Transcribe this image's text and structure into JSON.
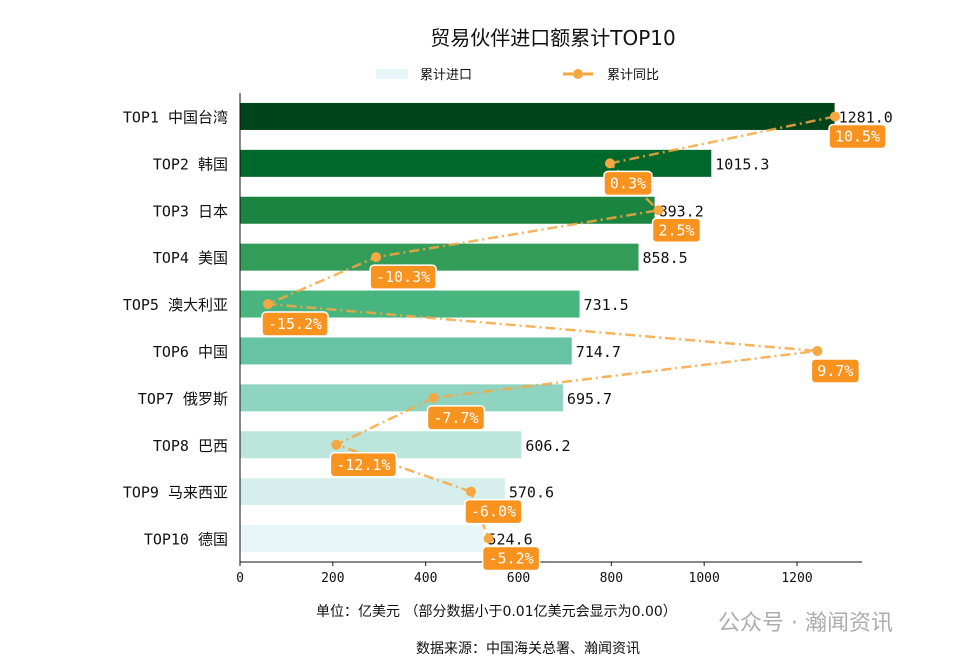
{
  "chart_data": {
    "type": "bar",
    "orientation": "horizontal",
    "title": "贸易伙伴进口额累计TOP10",
    "categories": [
      "TOP1 中国台湾",
      "TOP2 韩国",
      "TOP3 日本",
      "TOP4 美国",
      "TOP5 澳大利亚",
      "TOP6 中国",
      "TOP7 俄罗斯",
      "TOP8 巴西",
      "TOP9 马来西亚",
      "TOP10 德国"
    ],
    "series": [
      {
        "name": "累计进口",
        "type": "bar",
        "values": [
          1281.0,
          1015.3,
          893.2,
          858.5,
          731.5,
          714.7,
          695.7,
          606.2,
          570.6,
          524.6
        ],
        "labels": [
          "1281.0",
          "1015.3",
          "893.2",
          "858.5",
          "731.5",
          "714.7",
          "695.7",
          "606.2",
          "570.6",
          "524.6"
        ],
        "colors": [
          "#00441b",
          "#00682a",
          "#1b8440",
          "#339c59",
          "#48b57f",
          "#66c4a4",
          "#8fd4c1",
          "#bce5dc",
          "#d7efec",
          "#e8f5f9"
        ]
      },
      {
        "name": "累计同比",
        "type": "line",
        "values": [
          10.5,
          0.3,
          2.5,
          -10.3,
          -15.2,
          9.7,
          -7.7,
          -12.1,
          -6.0,
          -5.2
        ],
        "labels": [
          "10.5%",
          "0.3%",
          "2.5%",
          "-10.3%",
          "-15.2%",
          "9.7%",
          "-7.7%",
          "-12.1%",
          "-6.0%",
          "-5.2%"
        ],
        "color": "#f5a742",
        "label_bg": "#f7931e"
      }
    ],
    "xlim": [
      0,
      1340
    ],
    "xticks": [
      "0",
      "200",
      "400",
      "600",
      "800",
      "1000",
      "1200"
    ],
    "legend": "top-center",
    "grid": false,
    "xlabel": "单位：亿美元  （部分数据小于0.01亿美元会显示为0.00）",
    "source": "数据来源：中国海关总署、瀚闻资讯"
  },
  "watermark": "公众号 · 瀚闻资讯"
}
